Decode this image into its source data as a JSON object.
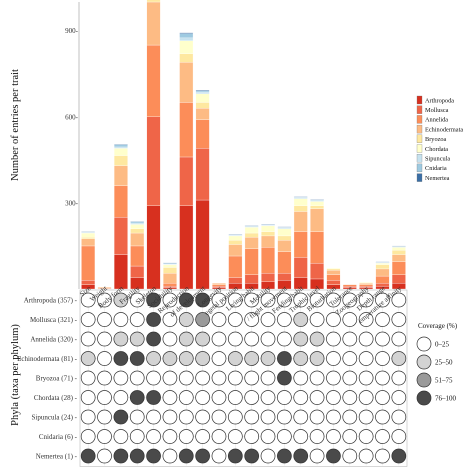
{
  "chart_data": {
    "type": "bar",
    "subtype": "stacked-bar-with-dot-matrix",
    "ylabel": "Number of entries per trait",
    "matrix_ylabel": "Phyla (taxa per phylum)",
    "ylim": [
      0,
      1000
    ],
    "yticks": [
      300,
      600,
      900
    ],
    "ytick_labels": [
      "300-",
      "600-",
      "900-"
    ],
    "grid": false,
    "legend_position": "right",
    "categories": [
      "Size",
      "Weight",
      "Body form",
      "Fragility",
      "Skeleton",
      "Sociability",
      "Reproduction",
      "Stage of development",
      "Longevity",
      "Substrate position",
      "Living habit",
      "Mobility",
      "Flight movement",
      "Feeding habit",
      "Trophic level",
      "Bioturbation",
      "Tolerance",
      "Zoogeography",
      "Depth range",
      "Temperature affinity"
    ],
    "category_labels": [
      "Size",
      "Weight",
      "Body form",
      "Fragility",
      "Skeleton",
      "Sociability",
      "Reproduction",
      "of development",
      "Longevity",
      "egetal position",
      "Living habit",
      "Mobility",
      "/ flight movement",
      "Feeding habit",
      "Trophic level",
      "Bioturbation",
      "Tolerance",
      "Zoogeography",
      "Depth range",
      "emperature affinity"
    ],
    "series": [
      {
        "name": "Arthropoda",
        "color": "#d7301f",
        "values": [
          15,
          0,
          120,
          40,
          290,
          5,
          290,
          310,
          5,
          20,
          20,
          25,
          30,
          40,
          35,
          15,
          5,
          5,
          10,
          20
        ]
      },
      {
        "name": "Mollusca",
        "color": "#ef6548",
        "values": [
          15,
          0,
          130,
          40,
          310,
          5,
          170,
          180,
          5,
          20,
          30,
          30,
          25,
          70,
          55,
          15,
          5,
          5,
          10,
          30
        ]
      },
      {
        "name": "Annelida",
        "color": "#fc8d59",
        "values": [
          120,
          3,
          110,
          70,
          250,
          10,
          190,
          100,
          5,
          75,
          90,
          90,
          75,
          90,
          110,
          20,
          5,
          5,
          25,
          45
        ]
      },
      {
        "name": "Echinodermata",
        "color": "#fdbb84",
        "values": [
          25,
          3,
          70,
          45,
          150,
          35,
          140,
          40,
          5,
          40,
          40,
          40,
          40,
          70,
          80,
          15,
          0,
          5,
          25,
          25
        ]
      },
      {
        "name": "Bryozoa",
        "color": "#fee8a0",
        "values": [
          5,
          0,
          35,
          15,
          70,
          20,
          30,
          20,
          0,
          15,
          15,
          15,
          15,
          20,
          10,
          5,
          0,
          0,
          15,
          15
        ]
      },
      {
        "name": "Chordata",
        "color": "#ffffcc",
        "values": [
          15,
          0,
          25,
          15,
          50,
          10,
          45,
          30,
          0,
          15,
          20,
          20,
          25,
          25,
          15,
          3,
          0,
          3,
          5,
          10
        ]
      },
      {
        "name": "Sipuncula",
        "color": "#c6e2ef",
        "values": [
          2,
          0,
          5,
          5,
          10,
          2,
          10,
          5,
          0,
          2,
          2,
          2,
          3,
          3,
          3,
          0,
          0,
          0,
          2,
          2
        ]
      },
      {
        "name": "Cnidaria",
        "color": "#9ecae1",
        "values": [
          2,
          0,
          8,
          5,
          20,
          3,
          15,
          5,
          0,
          3,
          3,
          3,
          3,
          3,
          3,
          0,
          0,
          0,
          2,
          2
        ]
      },
      {
        "name": "Nemertea",
        "color": "#3a6ea5",
        "values": [
          1,
          0,
          2,
          1,
          5,
          1,
          3,
          3,
          0,
          1,
          1,
          1,
          1,
          1,
          1,
          0,
          0,
          0,
          1,
          1
        ]
      }
    ],
    "phyla": [
      "Arthropoda (357)",
      "Mollusca (321)",
      "Annelida (320)",
      "Echinodermata (81)",
      "Bryozoa (71)",
      "Chordata (28)",
      "Sipuncula (24)",
      "Cnidaria (6)",
      "Nemertea (1)"
    ],
    "coverage_matrix": [
      [
        0,
        0,
        1,
        0,
        3,
        0,
        3,
        3,
        0,
        0,
        0,
        0,
        0,
        0,
        0,
        0,
        0,
        0,
        0,
        0
      ],
      [
        0,
        0,
        0,
        0,
        3,
        0,
        1,
        2,
        0,
        0,
        0,
        0,
        0,
        1,
        0,
        0,
        0,
        0,
        0,
        0
      ],
      [
        0,
        0,
        1,
        1,
        3,
        0,
        1,
        1,
        0,
        0,
        0,
        0,
        0,
        1,
        1,
        0,
        0,
        0,
        0,
        0
      ],
      [
        1,
        0,
        3,
        3,
        1,
        1,
        1,
        1,
        0,
        1,
        1,
        1,
        3,
        1,
        1,
        0,
        0,
        0,
        0,
        1
      ],
      [
        0,
        0,
        0,
        0,
        0,
        0,
        0,
        0,
        0,
        0,
        0,
        0,
        3,
        0,
        0,
        0,
        0,
        0,
        0,
        0
      ],
      [
        0,
        0,
        0,
        3,
        3,
        0,
        0,
        0,
        0,
        0,
        0,
        0,
        0,
        0,
        0,
        0,
        0,
        0,
        0,
        0
      ],
      [
        0,
        0,
        3,
        0,
        0,
        0,
        0,
        0,
        0,
        0,
        0,
        0,
        0,
        0,
        0,
        0,
        0,
        0,
        0,
        0
      ],
      [
        0,
        0,
        0,
        0,
        0,
        0,
        0,
        0,
        0,
        0,
        0,
        0,
        0,
        0,
        0,
        0,
        0,
        0,
        0,
        0
      ],
      [
        3,
        0,
        3,
        3,
        3,
        0,
        3,
        3,
        0,
        3,
        3,
        0,
        3,
        3,
        0,
        3,
        0,
        0,
        0,
        3
      ]
    ],
    "coverage_legend": {
      "title": "Coverage (%)",
      "labels": [
        "0–25",
        "25–50",
        "51–75",
        "76–100"
      ],
      "colors": [
        "#ffffff",
        "#d3d3d3",
        "#9a9a9a",
        "#4a4a4a"
      ]
    }
  }
}
